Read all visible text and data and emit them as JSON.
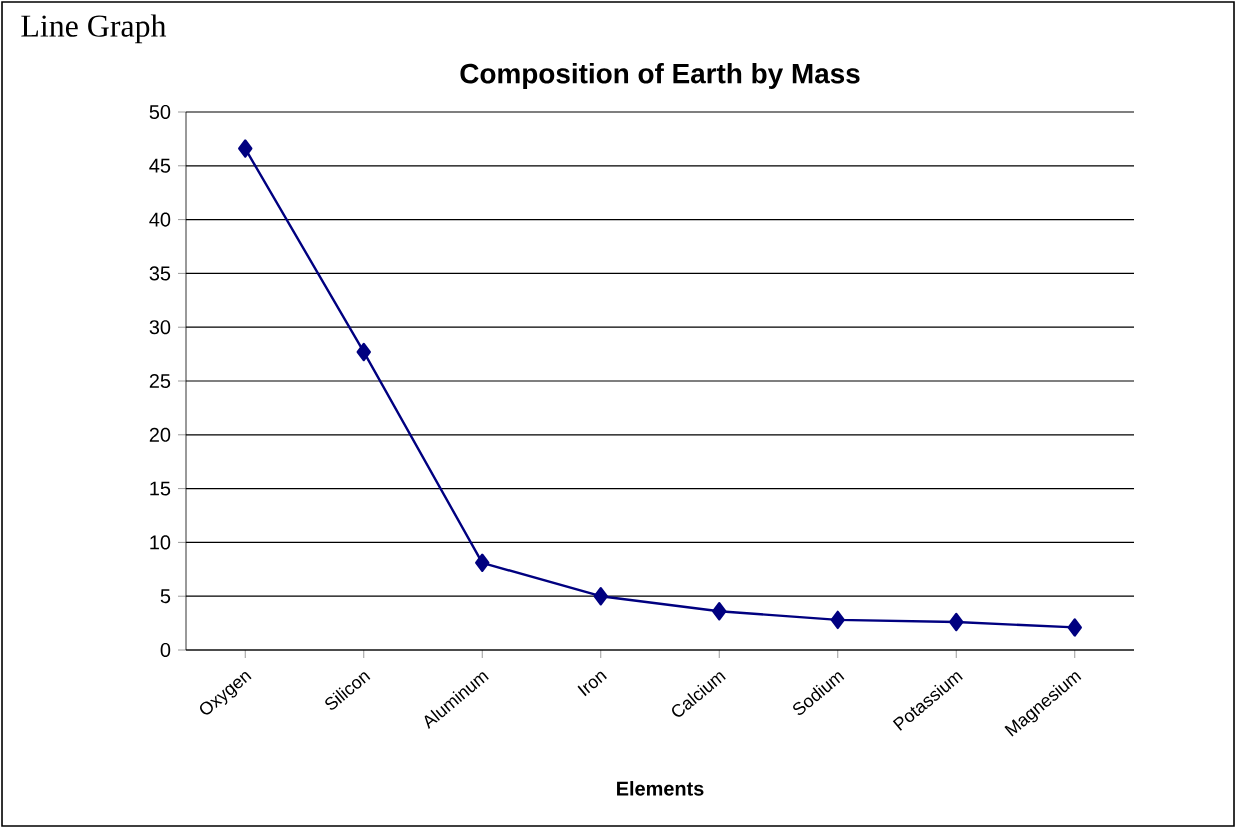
{
  "chart_data": {
    "type": "line",
    "title": "Composition of Earth by Mass",
    "xlabel": "Elements",
    "annotations": [
      "Line Graph"
    ],
    "categories": [
      "Oxygen",
      "Silicon",
      "Aluminum",
      "Iron",
      "Calcium",
      "Sodium",
      "Potassium",
      "Magnesium"
    ],
    "series": [
      {
        "color": "#000080",
        "values": [
          46.6,
          27.7,
          8.1,
          5.0,
          3.6,
          2.8,
          2.6,
          2.1
        ]
      }
    ],
    "ylim": [
      0,
      50
    ],
    "yticks": [
      0,
      5,
      10,
      15,
      20,
      25,
      30,
      35,
      40,
      45,
      50
    ],
    "grid": "y",
    "marker": "diamond",
    "line_style": "solid"
  }
}
